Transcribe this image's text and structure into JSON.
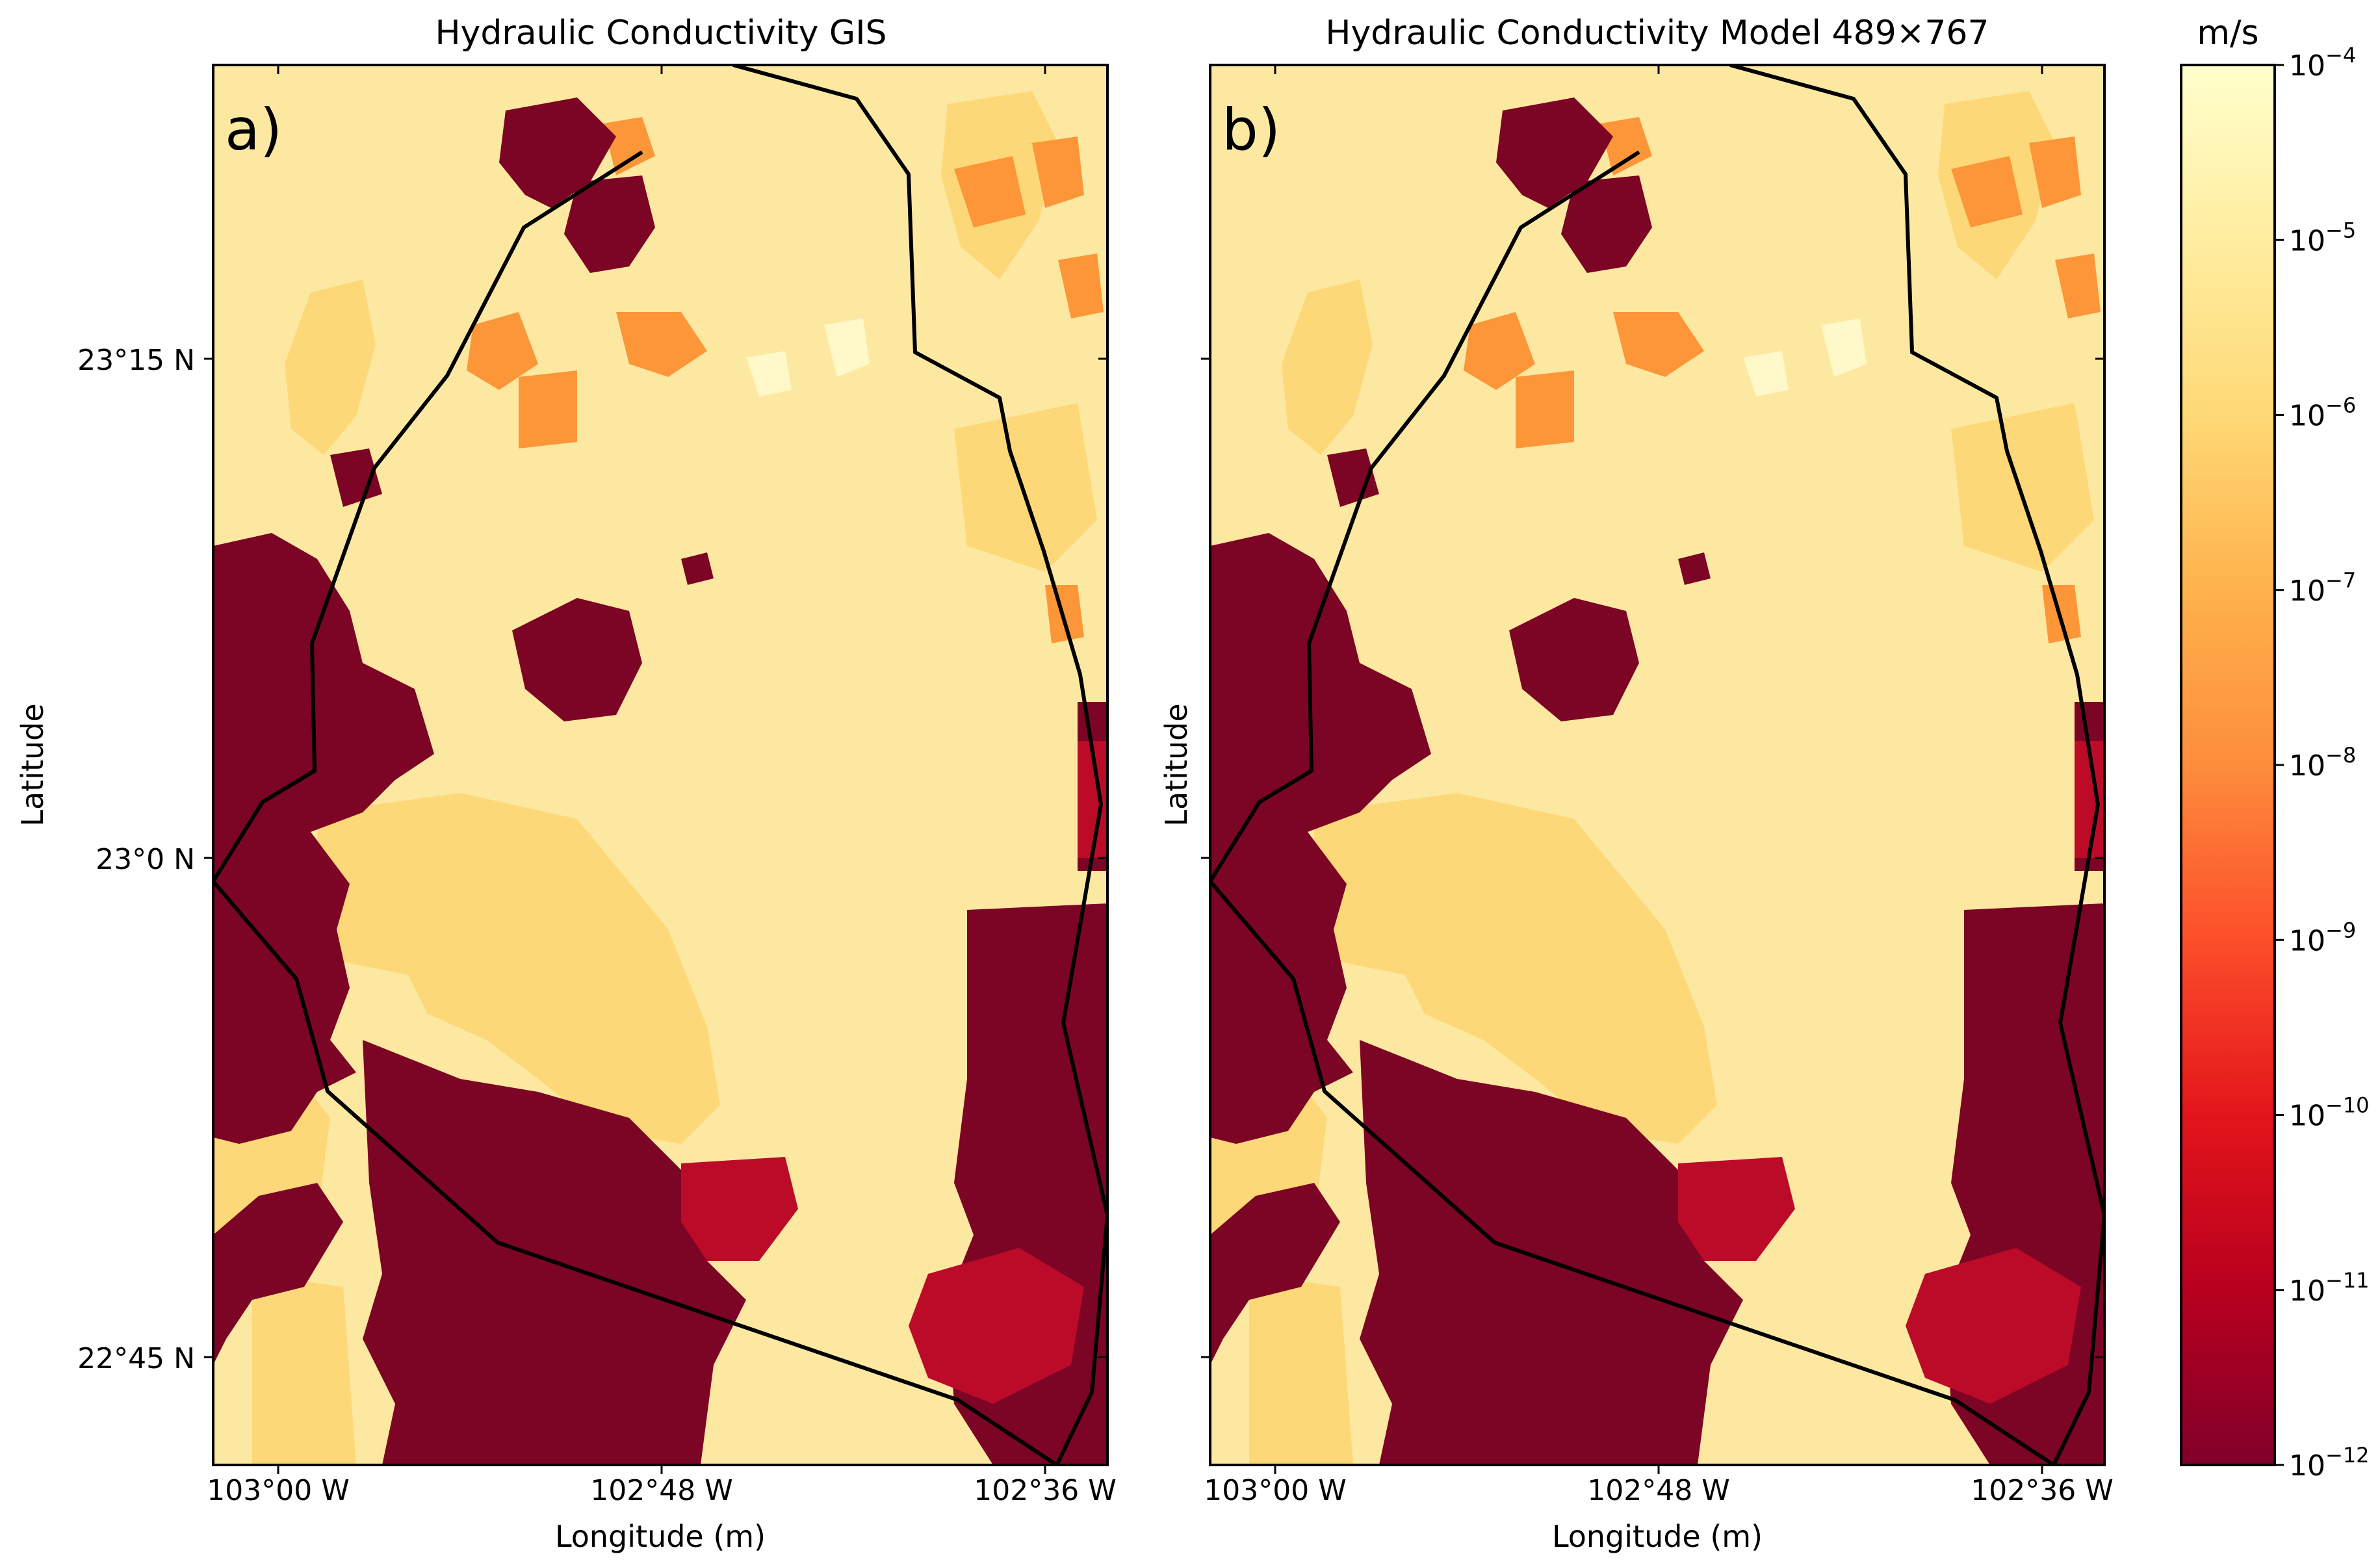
{
  "panels": [
    {
      "title": "Hydraulic Conductivity GIS",
      "label": "a)",
      "ylabel": "Latitude",
      "xlabel": "Longitude (m)",
      "lat_ticks": [
        "23°15 N",
        "23°0 N",
        "22°45 N"
      ],
      "lon_ticks": [
        "103°00 W",
        "102°48 W",
        "102°36 W"
      ]
    },
    {
      "title": "Hydraulic Conductivity Model 489×767",
      "label": "b)",
      "ylabel": "Latitude",
      "xlabel": "Longitude (m)",
      "lat_ticks": [],
      "lon_ticks": [
        "103°00 W",
        "102°48 W",
        "102°36 W"
      ]
    }
  ],
  "colorbar": {
    "unit": "m/s",
    "ticks": [
      {
        "base": "10",
        "exp": "−4"
      },
      {
        "base": "10",
        "exp": "−5"
      },
      {
        "base": "10",
        "exp": "−6"
      },
      {
        "base": "10",
        "exp": "−7"
      },
      {
        "base": "10",
        "exp": "−8"
      },
      {
        "base": "10",
        "exp": "−9"
      },
      {
        "base": "10",
        "exp": "−10"
      },
      {
        "base": "10",
        "exp": "−11"
      },
      {
        "base": "10",
        "exp": "−12"
      }
    ],
    "colormap": [
      "#ffffcc",
      "#fff0b0",
      "#ffe08f",
      "#fec45f",
      "#fd9a3a",
      "#fc5a2a",
      "#e81e1d",
      "#c2071f",
      "#80002a"
    ]
  },
  "colors": {
    "dark": "#7c0424",
    "red": "#bb0b28",
    "orange": "#fc9638",
    "tan": "#fdd878",
    "yellow": "#fde8a2",
    "pale": "#fff8c8",
    "boundary": "#000000"
  }
}
